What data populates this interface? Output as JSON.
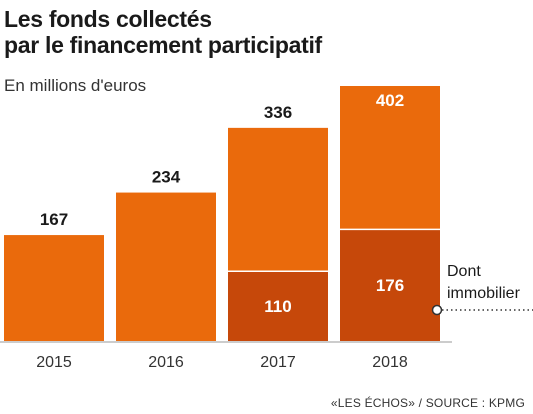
{
  "title_line1": "Les fonds collectés",
  "title_line2": "par le financement participatif",
  "subtitle": "En millions d'euros",
  "footer": "«LES ÉCHOS» / SOURCE : KPMG",
  "colors": {
    "total": "#ea6a0c",
    "immobilier": "#c6480a",
    "axis": "#999999",
    "label_dark": "#1a1a1a",
    "label_light": "#ffffff"
  },
  "chart_data": {
    "type": "bar",
    "categories": [
      "2015",
      "2016",
      "2017",
      "2018"
    ],
    "series": [
      {
        "values": [
          167,
          234,
          336,
          402
        ]
      },
      {
        "name": "Dont immobilier",
        "values": [
          null,
          null,
          110,
          176
        ]
      }
    ],
    "annotation": [
      "Dont",
      "immobilier"
    ],
    "ylim": [
      0,
      430
    ]
  }
}
